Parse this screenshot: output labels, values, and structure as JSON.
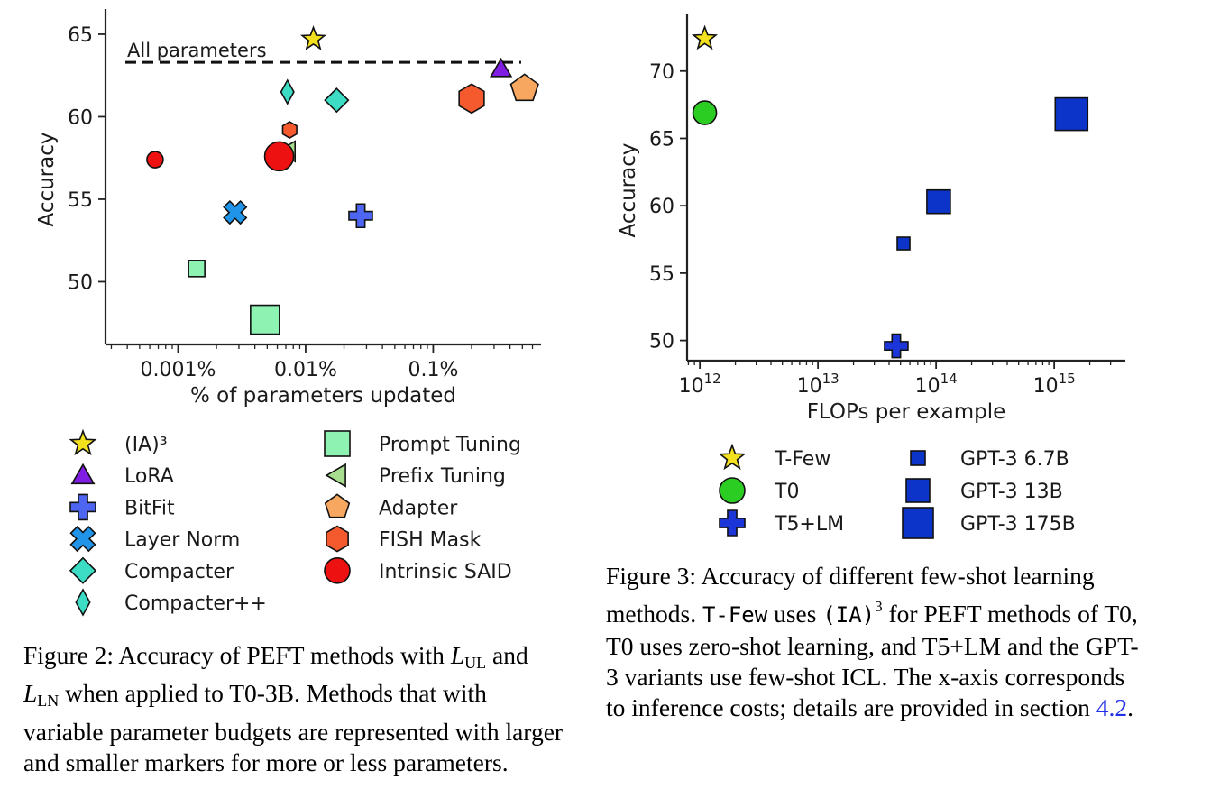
{
  "chart_data": [
    {
      "type": "scatter",
      "xlabel": "% of parameters updated",
      "ylabel": "Accuracy",
      "xscale": "log",
      "xlim": [
        0.00027,
        0.7
      ],
      "ylim": [
        46.2,
        66.2
      ],
      "xticks": [
        {
          "value": 0.001,
          "label": "0.001%"
        },
        {
          "value": 0.01,
          "label": "0.01%"
        },
        {
          "value": 0.1,
          "label": "0.1%"
        }
      ],
      "yticks": [
        {
          "value": 50,
          "label": "50"
        },
        {
          "value": 55,
          "label": "55"
        },
        {
          "value": 60,
          "label": "60"
        },
        {
          "value": 65,
          "label": "65"
        }
      ],
      "reference_line": {
        "label": "All parameters",
        "value": 63.3,
        "style": "dashed"
      },
      "points": [
        {
          "method": "(IA)³",
          "marker": "star",
          "color": "#f4e11d",
          "size": "normal",
          "x": 0.0115,
          "y": 64.7
        },
        {
          "method": "LoRA",
          "marker": "triangle-up",
          "color": "#7f1de3",
          "size": "normal",
          "x": 0.34,
          "y": 62.9
        },
        {
          "method": "Adapter",
          "marker": "pentagon",
          "color": "#f7a760",
          "size": "large",
          "x": 0.52,
          "y": 61.7
        },
        {
          "method": "FISH Mask",
          "marker": "hexagon",
          "color": "#f45a2e",
          "size": "large",
          "x": 0.2,
          "y": 61.1
        },
        {
          "method": "Compacter",
          "marker": "diamond",
          "color": "#3ddcc4",
          "size": "normal",
          "x": 0.0175,
          "y": 61.0
        },
        {
          "method": "Compacter++",
          "marker": "thin-diamond",
          "color": "#3ddcc4",
          "size": "normal",
          "x": 0.0072,
          "y": 61.5
        },
        {
          "method": "FISH Mask",
          "marker": "hexagon",
          "color": "#f45a2e",
          "size": "small",
          "x": 0.0075,
          "y": 59.2
        },
        {
          "method": "Prefix Tuning",
          "marker": "triangle-left",
          "color": "#a8dc8f",
          "size": "normal",
          "x": 0.0072,
          "y": 57.9
        },
        {
          "method": "Intrinsic SAID",
          "marker": "circle",
          "color": "#ee1111",
          "size": "large",
          "x": 0.0062,
          "y": 57.6
        },
        {
          "method": "Intrinsic SAID",
          "marker": "circle",
          "color": "#ee1111",
          "size": "small",
          "x": 0.00066,
          "y": 57.4
        },
        {
          "method": "Layer Norm",
          "marker": "x",
          "color": "#1f94e8",
          "size": "normal",
          "x": 0.0028,
          "y": 54.2
        },
        {
          "method": "BitFit",
          "marker": "plus",
          "color": "#4d65f0",
          "size": "normal",
          "x": 0.027,
          "y": 54.0
        },
        {
          "method": "Prompt Tuning",
          "marker": "square",
          "color": "#8ef2b2",
          "size": "small",
          "x": 0.0014,
          "y": 50.8
        },
        {
          "method": "Prompt Tuning",
          "marker": "square",
          "color": "#8ef2b2",
          "size": "large",
          "x": 0.0048,
          "y": 47.7
        }
      ],
      "legend": [
        {
          "label": "(IA)³",
          "marker": "star",
          "color": "#f4e11d"
        },
        {
          "label": "LoRA",
          "marker": "triangle-up",
          "color": "#7f1de3"
        },
        {
          "label": "BitFit",
          "marker": "plus",
          "color": "#4d65f0"
        },
        {
          "label": "Layer Norm",
          "marker": "x",
          "color": "#1f94e8"
        },
        {
          "label": "Compacter",
          "marker": "diamond",
          "color": "#3ddcc4"
        },
        {
          "label": "Compacter++",
          "marker": "thin-diamond",
          "color": "#3ddcc4"
        },
        {
          "label": "Prompt Tuning",
          "marker": "square",
          "color": "#8ef2b2"
        },
        {
          "label": "Prefix Tuning",
          "marker": "triangle-left",
          "color": "#a8dc8f"
        },
        {
          "label": "Adapter",
          "marker": "pentagon",
          "color": "#f7a760"
        },
        {
          "label": "FISH Mask",
          "marker": "hexagon",
          "color": "#f45a2e"
        },
        {
          "label": "Intrinsic SAID",
          "marker": "circle",
          "color": "#ee1111"
        }
      ],
      "legend_position": "below"
    },
    {
      "type": "scatter",
      "xlabel": "FLOPs per example",
      "ylabel": "Accuracy",
      "xscale": "log",
      "xlim": [
        780000000000.0,
        4000000000000000.0
      ],
      "ylim": [
        48.5,
        73.8
      ],
      "xticks": [
        {
          "value": 1000000000000.0,
          "label": "10",
          "exp": "12"
        },
        {
          "value": 10000000000000.0,
          "label": "10",
          "exp": "13"
        },
        {
          "value": 100000000000000.0,
          "label": "10",
          "exp": "14"
        },
        {
          "value": 1000000000000000.0,
          "label": "10",
          "exp": "15"
        }
      ],
      "yticks": [
        {
          "value": 50,
          "label": "50"
        },
        {
          "value": 55,
          "label": "55"
        },
        {
          "value": 60,
          "label": "60"
        },
        {
          "value": 65,
          "label": "65"
        },
        {
          "value": 70,
          "label": "70"
        }
      ],
      "points": [
        {
          "method": "T-Few",
          "marker": "star",
          "color": "#f4e11d",
          "size": "normal",
          "x": 1100000000000.0,
          "y": 72.4
        },
        {
          "method": "T0",
          "marker": "circle",
          "color": "#2ccd22",
          "size": "normal",
          "x": 1100000000000.0,
          "y": 66.9
        },
        {
          "method": "T5+LM",
          "marker": "plus",
          "color": "#1c35d8",
          "size": "normal",
          "x": 46000000000000.0,
          "y": 49.6
        },
        {
          "method": "GPT-3 6.7B",
          "marker": "square",
          "color": "#0d34c8",
          "size": "small",
          "x": 53000000000000.0,
          "y": 57.2
        },
        {
          "method": "GPT-3 13B",
          "marker": "square",
          "color": "#0d34c8",
          "size": "medium",
          "x": 105000000000000.0,
          "y": 60.3
        },
        {
          "method": "GPT-3 175B",
          "marker": "square",
          "color": "#0d34c8",
          "size": "large",
          "x": 1400000000000000.0,
          "y": 66.8
        }
      ],
      "legend": [
        {
          "label": "T-Few",
          "marker": "star",
          "color": "#f4e11d"
        },
        {
          "label": "T0",
          "marker": "circle",
          "color": "#2ccd22"
        },
        {
          "label": "T5+LM",
          "marker": "plus",
          "color": "#1c35d8"
        },
        {
          "label": "GPT-3 6.7B",
          "marker": "square",
          "color": "#0d34c8",
          "size": "small"
        },
        {
          "label": "GPT-3 13B",
          "marker": "square",
          "color": "#0d34c8",
          "size": "medium"
        },
        {
          "label": "GPT-3 175B",
          "marker": "square",
          "color": "#0d34c8",
          "size": "large"
        }
      ],
      "legend_position": "below"
    }
  ],
  "captions": {
    "fig2": {
      "prefix": "Figure 2: Accuracy of PEFT methods with ",
      "l1": "L",
      "l1_sub": "UL",
      "mid": " and ",
      "l2": "L",
      "l2_sub": "LN",
      "suffix": " when applied to T0-3B. Methods that with variable parameter budgets are represented with larger and smaller markers for more or less parameters."
    },
    "fig3": {
      "p1": "Figure 3: Accuracy of different few-shot learning methods. ",
      "tfew": "T-Few",
      "p2": " uses ",
      "ia3": "(IA)",
      "ia3_sup": "3",
      "p3": " for PEFT methods of T0, T0 uses zero-shot learning, and T5+LM and the GPT-3 variants use few-shot ICL. The x-axis corresponds to inference costs; details are provided in section ",
      "section": "4.2",
      "p4": "."
    }
  }
}
